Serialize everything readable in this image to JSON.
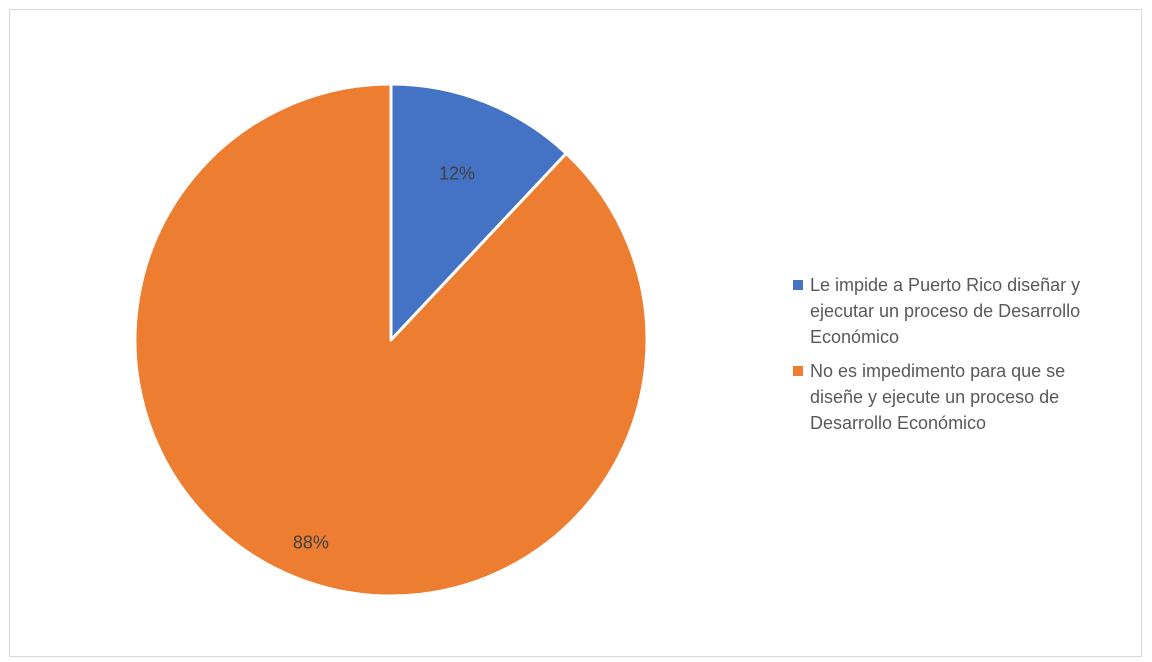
{
  "chart_data": {
    "type": "pie",
    "title": "",
    "categories": [
      "Le impide a Puerto Rico diseñar y ejecutar un proceso de Desarrollo Económico",
      "No es impedimento para que se diseñe y ejecute un proceso de Desarrollo Económico"
    ],
    "values": [
      12,
      88
    ],
    "data_labels": [
      "12%",
      "88%"
    ],
    "colors": [
      "#4472c4",
      "#ed7d31"
    ],
    "legend_position": "right"
  }
}
